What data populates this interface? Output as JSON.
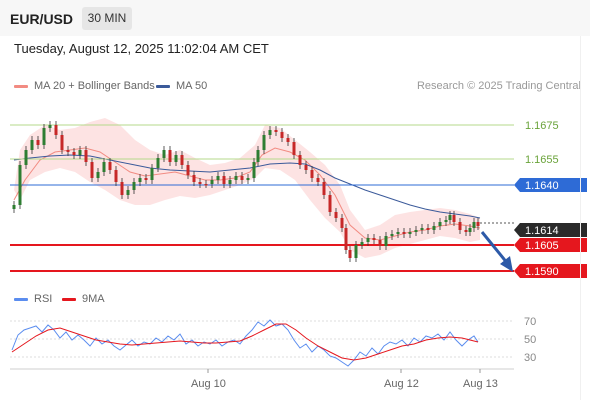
{
  "header": {
    "symbol": "EUR/USD",
    "timeframe": "30 MIN"
  },
  "datetime": "Tuesday, August 12, 2025 11:02:04 AM CET",
  "legend_main": [
    {
      "label": "MA 20 + Bollinger Bands",
      "color": "#f28b82"
    },
    {
      "label": "MA 50",
      "color": "#3b5a9a"
    }
  ],
  "brand": "Research © 2025 Trading Central",
  "levels": {
    "r2": "1.1675",
    "r1": "1.1655",
    "pivot": "1.1640",
    "last": "1.1614",
    "s1": "1.1605",
    "s2": "1.1590"
  },
  "colors": {
    "resistance": "#8cc152",
    "pivot": "#2e6bd6",
    "support": "#e5171e",
    "last_price_bg": "#2a2a2a",
    "bollinger_fill": "#fde0e0",
    "up_candle": "#2e7d32",
    "down_candle": "#c62828",
    "arrow": "#2d5aa8"
  },
  "legend_rsi": [
    {
      "label": "RSI",
      "color": "#5b8def"
    },
    {
      "label": "9MA",
      "color": "#e5171e"
    }
  ],
  "rsi_levels": [
    "70",
    "50",
    "30"
  ],
  "xaxis": [
    "Aug 10",
    "Aug 12",
    "Aug 13"
  ]
}
